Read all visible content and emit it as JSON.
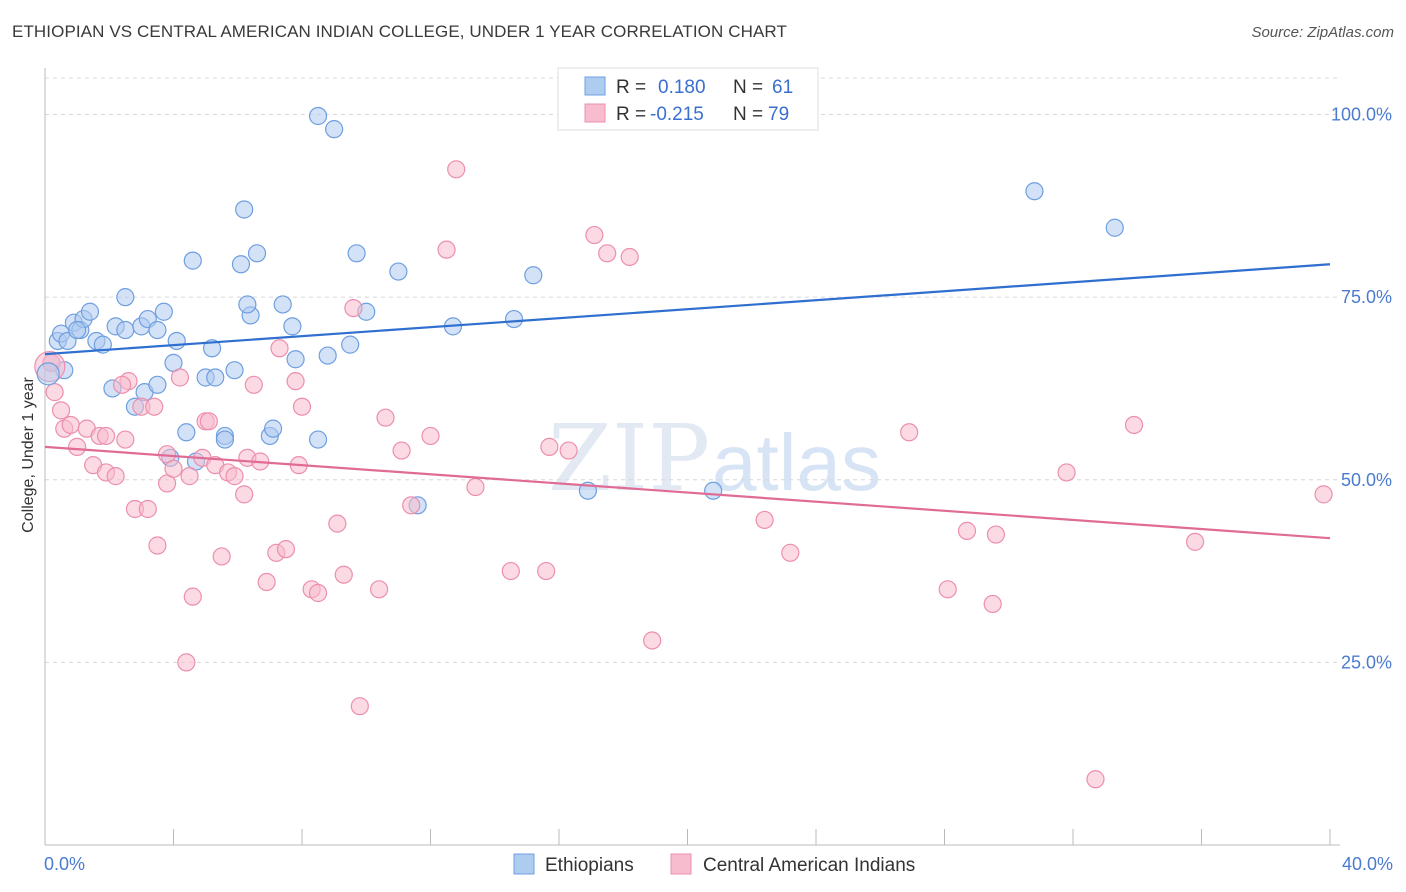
{
  "header": {
    "title": "ETHIOPIAN VS CENTRAL AMERICAN INDIAN COLLEGE, UNDER 1 YEAR CORRELATION CHART",
    "source": "Source: ZipAtlas.com"
  },
  "watermark": {
    "zip": "ZIP",
    "atlas": "atlas"
  },
  "legend": {
    "rows": [
      {
        "r_label": "R =",
        "r_value": "0.180",
        "n_label": "N =",
        "n_value": "61"
      },
      {
        "r_label": "R =",
        "r_value": "-0.215",
        "n_label": "N =",
        "n_value": "79"
      }
    ]
  },
  "bottom_legend": [
    "Ethiopians",
    "Central American Indians"
  ],
  "colors": {
    "blue_fill": "#aecbf0",
    "blue_stroke": "#6f9fe0",
    "blue_line": "#2f6fcf",
    "pink_fill": "#f7bccd",
    "pink_stroke": "#ec8fae",
    "pink_line": "#e06b95",
    "tick_text": "#4a7bd0",
    "grid": "#d8d8d8"
  },
  "chart_data": {
    "type": "scatter",
    "title": "ETHIOPIAN VS CENTRAL AMERICAN INDIAN COLLEGE, UNDER 1 YEAR CORRELATION CHART",
    "xlabel": "",
    "ylabel": "College, Under 1 year",
    "xlim": [
      0,
      40
    ],
    "ylim": [
      0,
      105
    ],
    "x_tick_labels": [
      "0.0%",
      "40.0%"
    ],
    "y_ticks": [
      25,
      50,
      75,
      100
    ],
    "y_tick_labels": [
      "25.0%",
      "50.0%",
      "75.0%",
      "100.0%"
    ],
    "grid": true,
    "legend_position": "top-center",
    "series": [
      {
        "name": "Ethiopians",
        "color": "#aecbf0",
        "trend": {
          "x": [
            0,
            40
          ],
          "y": [
            67.2,
            79.5
          ]
        },
        "points": [
          [
            0.2,
            66
          ],
          [
            0.4,
            69
          ],
          [
            0.5,
            70
          ],
          [
            0.7,
            69
          ],
          [
            0.9,
            71.5
          ],
          [
            1.1,
            70.5
          ],
          [
            1.2,
            72
          ],
          [
            1.4,
            73
          ],
          [
            1.6,
            69
          ],
          [
            1.8,
            68.5
          ],
          [
            2.2,
            71
          ],
          [
            2.5,
            70.5
          ],
          [
            2.5,
            75
          ],
          [
            3.0,
            71
          ],
          [
            3.2,
            72
          ],
          [
            3.5,
            70.5
          ],
          [
            3.7,
            73
          ],
          [
            2.1,
            62.5
          ],
          [
            2.8,
            60
          ],
          [
            3.1,
            62
          ],
          [
            3.5,
            63
          ],
          [
            4.1,
            69
          ],
          [
            4.0,
            66
          ],
          [
            3.9,
            53
          ],
          [
            4.4,
            56.5
          ],
          [
            4.6,
            80
          ],
          [
            5.0,
            64
          ],
          [
            5.2,
            68
          ],
          [
            5.3,
            64
          ],
          [
            5.6,
            56
          ],
          [
            5.6,
            55.5
          ],
          [
            5.9,
            65
          ],
          [
            6.1,
            79.5
          ],
          [
            6.2,
            87
          ],
          [
            6.4,
            72.5
          ],
          [
            6.6,
            81
          ],
          [
            6.3,
            74
          ],
          [
            7.0,
            56
          ],
          [
            7.1,
            57
          ],
          [
            7.4,
            74
          ],
          [
            7.7,
            71
          ],
          [
            7.8,
            66.5
          ],
          [
            8.5,
            99.8
          ],
          [
            9.0,
            98
          ],
          [
            8.5,
            55.5
          ],
          [
            8.8,
            67
          ],
          [
            9.5,
            68.5
          ],
          [
            9.7,
            81
          ],
          [
            10.0,
            73
          ],
          [
            11.0,
            78.5
          ],
          [
            11.6,
            46.5
          ],
          [
            12.7,
            71
          ],
          [
            14.6,
            72
          ],
          [
            15.2,
            78
          ],
          [
            16.9,
            48.5
          ],
          [
            20.8,
            48.5
          ],
          [
            30.8,
            89.5
          ],
          [
            33.3,
            84.5
          ],
          [
            4.7,
            52.5
          ],
          [
            1.0,
            70.5
          ],
          [
            0.6,
            65
          ]
        ]
      },
      {
        "name": "Central American Indians",
        "color": "#f7bccd",
        "trend": {
          "x": [
            0,
            40
          ],
          "y": [
            54.5,
            42
          ]
        },
        "points": [
          [
            0.2,
            66
          ],
          [
            0.3,
            62
          ],
          [
            0.5,
            59.5
          ],
          [
            0.6,
            57
          ],
          [
            0.8,
            57.5
          ],
          [
            1.0,
            54.5
          ],
          [
            1.3,
            57
          ],
          [
            1.5,
            52
          ],
          [
            1.7,
            56
          ],
          [
            1.9,
            51
          ],
          [
            2.2,
            50.5
          ],
          [
            2.5,
            55.5
          ],
          [
            2.6,
            63.5
          ],
          [
            2.8,
            46
          ],
          [
            3.0,
            60
          ],
          [
            3.2,
            46
          ],
          [
            3.4,
            60
          ],
          [
            3.5,
            41
          ],
          [
            3.8,
            53.5
          ],
          [
            3.8,
            49.5
          ],
          [
            4.0,
            51.5
          ],
          [
            4.2,
            64
          ],
          [
            4.4,
            25
          ],
          [
            4.5,
            50.5
          ],
          [
            4.6,
            34
          ],
          [
            4.9,
            53
          ],
          [
            5.0,
            58
          ],
          [
            5.1,
            58
          ],
          [
            5.3,
            52
          ],
          [
            5.5,
            39.5
          ],
          [
            5.7,
            51
          ],
          [
            5.9,
            50.5
          ],
          [
            6.2,
            48
          ],
          [
            6.3,
            53
          ],
          [
            6.5,
            63
          ],
          [
            6.7,
            52.5
          ],
          [
            6.9,
            36
          ],
          [
            7.2,
            40
          ],
          [
            7.3,
            68
          ],
          [
            7.5,
            40.5
          ],
          [
            7.8,
            63.5
          ],
          [
            7.9,
            52
          ],
          [
            8.0,
            60
          ],
          [
            8.3,
            35
          ],
          [
            8.5,
            34.5
          ],
          [
            9.1,
            44
          ],
          [
            9.3,
            37
          ],
          [
            9.6,
            73.5
          ],
          [
            9.8,
            19
          ],
          [
            10.4,
            35
          ],
          [
            10.6,
            58.5
          ],
          [
            11.1,
            54
          ],
          [
            11.4,
            46.5
          ],
          [
            12.0,
            56
          ],
          [
            12.5,
            81.5
          ],
          [
            12.8,
            92.5
          ],
          [
            13.4,
            49
          ],
          [
            14.5,
            37.5
          ],
          [
            15.6,
            37.5
          ],
          [
            15.7,
            54.5
          ],
          [
            16.3,
            54
          ],
          [
            17.1,
            83.5
          ],
          [
            17.5,
            81
          ],
          [
            18.2,
            80.5
          ],
          [
            18.9,
            28
          ],
          [
            22.4,
            44.5
          ],
          [
            23.2,
            40
          ],
          [
            26.9,
            56.5
          ],
          [
            28.1,
            35
          ],
          [
            28.7,
            43
          ],
          [
            29.5,
            33
          ],
          [
            29.6,
            42.5
          ],
          [
            31.8,
            51
          ],
          [
            32.7,
            9
          ],
          [
            33.9,
            57.5
          ],
          [
            35.8,
            41.5
          ],
          [
            39.8,
            48
          ],
          [
            1.9,
            56
          ],
          [
            2.4,
            63
          ]
        ]
      }
    ]
  }
}
